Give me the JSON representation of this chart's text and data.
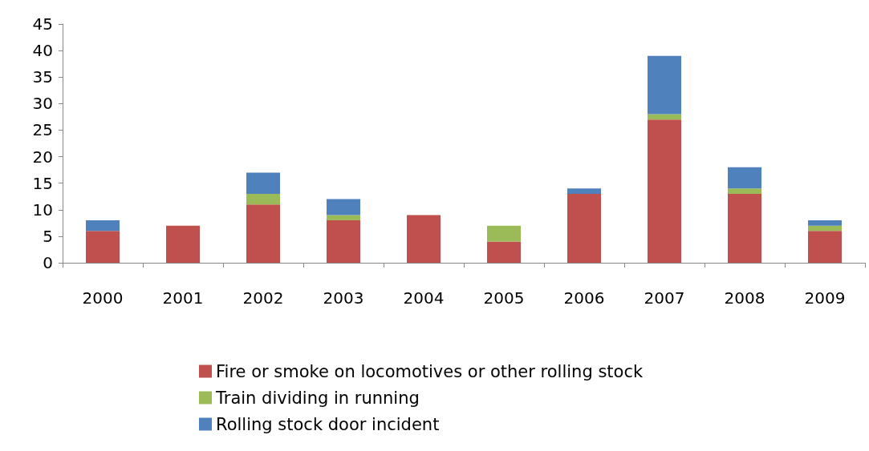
{
  "chart_data": {
    "type": "bar",
    "stacked": true,
    "categories": [
      "2000",
      "2001",
      "2002",
      "2003",
      "2004",
      "2005",
      "2006",
      "2007",
      "2008",
      "2009"
    ],
    "series": [
      {
        "name": "Fire or smoke on locomotives or other rolling stock",
        "color": "#c0504d",
        "values": [
          6,
          7,
          11,
          8,
          9,
          4,
          13,
          27,
          13,
          6
        ]
      },
      {
        "name": "Train dividing in running",
        "color": "#9bbb59",
        "values": [
          0,
          0,
          2,
          1,
          0,
          3,
          0,
          1,
          1,
          1
        ]
      },
      {
        "name": "Rolling stock door incident",
        "color": "#4f81bd",
        "values": [
          2,
          0,
          4,
          3,
          0,
          0,
          1,
          11,
          4,
          1
        ]
      }
    ],
    "ylim": [
      0,
      45
    ],
    "yticks": [
      0,
      5,
      10,
      15,
      20,
      25,
      30,
      35,
      40,
      45
    ],
    "grid": false,
    "legend": "bottom"
  }
}
